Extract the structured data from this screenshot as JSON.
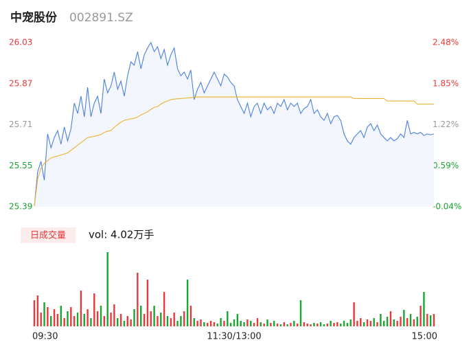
{
  "chart_data": {
    "type": "line",
    "title": "中宠股份",
    "code": "002891.SZ",
    "xlim": [
      0,
      240
    ],
    "xticks": [
      {
        "value": 0,
        "label": "09:30"
      },
      {
        "value": 120,
        "label": "11:30/13:00"
      },
      {
        "value": 240,
        "label": "15:00"
      }
    ],
    "ylim": [
      25.39,
      26.03
    ],
    "yticks": [
      25.39,
      25.55,
      25.71,
      25.87,
      26.03
    ],
    "y2lim": [
      -0.04,
      2.48
    ],
    "y2ticks": [
      {
        "value": -0.04,
        "label": "-0.04%"
      },
      {
        "value": 0.59,
        "label": "0.59%"
      },
      {
        "value": 1.22,
        "label": "1.22%"
      },
      {
        "value": 1.85,
        "label": "1.85%"
      },
      {
        "value": 2.48,
        "label": "2.48%"
      }
    ],
    "up_color": "#e8393a",
    "down_color": "#1aa531",
    "flat_color": "#999999",
    "x": [
      0,
      2,
      4,
      6,
      8,
      10,
      12,
      14,
      16,
      18,
      20,
      22,
      24,
      26,
      28,
      30,
      32,
      34,
      36,
      38,
      40,
      42,
      44,
      46,
      48,
      50,
      52,
      54,
      56,
      58,
      60,
      62,
      64,
      66,
      68,
      70,
      72,
      74,
      76,
      78,
      80,
      82,
      84,
      86,
      88,
      90,
      92,
      94,
      96,
      98,
      100,
      102,
      104,
      106,
      108,
      110,
      112,
      114,
      116,
      118,
      120,
      122,
      124,
      126,
      128,
      130,
      132,
      134,
      136,
      138,
      140,
      142,
      144,
      146,
      148,
      150,
      152,
      154,
      156,
      158,
      160,
      162,
      164,
      166,
      168,
      170,
      172,
      174,
      176,
      178,
      180,
      182,
      184,
      186,
      188,
      190,
      192,
      194,
      196,
      198,
      200,
      202,
      204,
      206,
      208,
      210,
      212,
      214,
      216,
      218,
      220,
      222,
      224,
      226,
      228,
      230,
      232,
      234,
      236,
      238,
      240
    ],
    "series": [
      {
        "color": "#4a7fe0",
        "fill": "#f3f7fd",
        "values": [
          25.393,
          25.527,
          25.567,
          25.494,
          25.674,
          25.62,
          25.66,
          25.687,
          25.634,
          25.701,
          25.647,
          25.693,
          25.794,
          25.754,
          25.821,
          25.741,
          25.856,
          25.741,
          25.794,
          25.821,
          25.754,
          25.888,
          25.834,
          25.861,
          25.915,
          25.848,
          25.88,
          25.821,
          25.901,
          25.955,
          25.942,
          25.995,
          25.928,
          25.982,
          26.009,
          26.03,
          25.995,
          26.014,
          25.968,
          26.003,
          25.942,
          25.982,
          26.009,
          25.928,
          25.901,
          25.915,
          25.888,
          25.923,
          25.808,
          25.848,
          25.875,
          25.834,
          25.861,
          25.888,
          25.915,
          25.888,
          25.861,
          25.907,
          25.896,
          25.875,
          25.861,
          25.808,
          25.781,
          25.754,
          25.794,
          25.741,
          25.781,
          25.794,
          25.754,
          25.794,
          25.768,
          25.781,
          25.754,
          25.794,
          25.781,
          25.808,
          25.768,
          25.794,
          25.781,
          25.794,
          25.754,
          25.773,
          25.781,
          25.808,
          25.754,
          25.768,
          25.741,
          25.727,
          25.754,
          25.714,
          25.741,
          25.746,
          25.727,
          25.674,
          25.647,
          25.634,
          25.66,
          25.674,
          25.687,
          25.66,
          25.701,
          25.714,
          25.687,
          25.709,
          25.674,
          25.66,
          25.647,
          25.66,
          25.647,
          25.655,
          25.674,
          25.66,
          25.727,
          25.674,
          25.68,
          25.674,
          25.68,
          25.668,
          25.674,
          25.671,
          25.674
        ]
      },
      {
        "color": "#f0b030",
        "values": [
          25.393,
          25.5,
          25.54,
          25.56,
          25.57,
          25.58,
          25.585,
          25.588,
          25.592,
          25.596,
          25.6,
          25.61,
          25.62,
          25.63,
          25.64,
          25.65,
          25.66,
          25.662,
          25.665,
          25.668,
          25.672,
          25.68,
          25.685,
          25.687,
          25.7,
          25.71,
          25.72,
          25.727,
          25.73,
          25.733,
          25.735,
          25.74,
          25.748,
          25.754,
          25.76,
          25.77,
          25.778,
          25.781,
          25.79,
          25.798,
          25.802,
          25.808,
          25.81,
          25.811,
          25.812,
          25.813,
          25.814,
          25.815,
          25.818,
          25.818,
          25.818,
          25.818,
          25.818,
          25.818,
          25.818,
          25.818,
          25.818,
          25.818,
          25.818,
          25.818,
          25.818,
          25.818,
          25.818,
          25.818,
          25.818,
          25.818,
          25.818,
          25.818,
          25.818,
          25.818,
          25.818,
          25.818,
          25.818,
          25.818,
          25.818,
          25.818,
          25.818,
          25.818,
          25.818,
          25.818,
          25.818,
          25.818,
          25.818,
          25.818,
          25.818,
          25.818,
          25.818,
          25.818,
          25.818,
          25.818,
          25.818,
          25.818,
          25.818,
          25.818,
          25.818,
          25.818,
          25.812,
          25.812,
          25.812,
          25.812,
          25.812,
          25.812,
          25.812,
          25.812,
          25.812,
          25.812,
          25.802,
          25.802,
          25.802,
          25.802,
          25.802,
          25.802,
          25.802,
          25.802,
          25.802,
          25.79,
          25.79,
          25.79,
          25.79,
          25.79,
          25.79
        ]
      }
    ],
    "volume": {
      "label": "日成交量",
      "text": "vol: 4.02万手",
      "values": [
        38,
        45,
        20,
        35,
        28,
        15,
        25,
        18,
        30,
        12,
        22,
        28,
        15,
        20,
        52,
        18,
        25,
        12,
        48,
        22,
        30,
        15,
        108,
        20,
        32,
        12,
        18,
        8,
        15,
        10,
        25,
        78,
        30,
        18,
        68,
        22,
        30,
        15,
        20,
        50,
        15,
        12,
        20,
        8,
        15,
        22,
        68,
        30,
        12,
        8,
        10,
        6,
        5,
        8,
        6,
        4,
        12,
        8,
        22,
        5,
        10,
        18,
        8,
        6,
        10,
        8,
        5,
        12,
        6,
        4,
        10,
        5,
        8,
        4,
        3,
        6,
        3,
        5,
        8,
        4,
        38,
        6,
        4,
        3,
        5,
        4,
        6,
        3,
        4,
        8,
        5,
        6,
        4,
        8,
        5,
        10,
        35,
        8,
        12,
        6,
        10,
        8,
        12,
        6,
        18,
        8,
        14,
        22,
        10,
        8,
        14,
        24,
        12,
        18,
        10,
        14,
        30,
        50,
        18,
        16,
        18
      ]
    }
  }
}
